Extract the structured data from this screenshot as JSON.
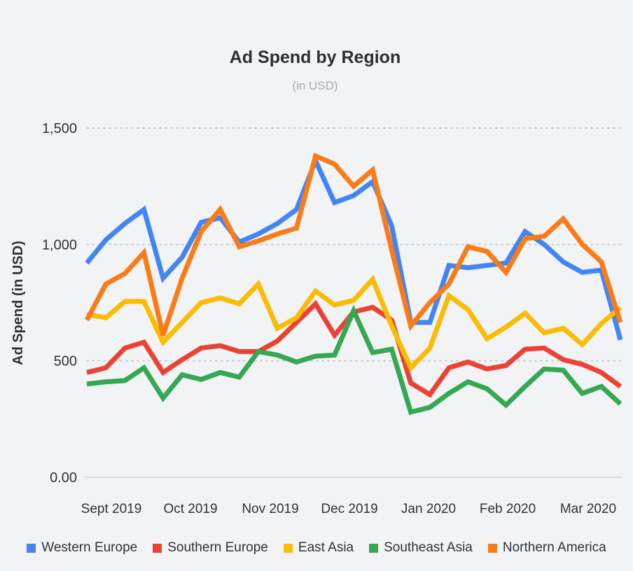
{
  "chart_data": {
    "type": "line",
    "title": "Ad Spend by Region",
    "subtitle": "(in USD)",
    "ylabel": "Ad Spend (in USD)",
    "xlabel": "",
    "ylim": [
      0,
      1500
    ],
    "yticks": [
      0,
      500,
      1000,
      1500
    ],
    "ytick_labels": [
      "0.00",
      "500",
      "1,000",
      "1,500"
    ],
    "x_tick_labels": [
      "Sept 2019",
      "Oct 2019",
      "Nov 2019",
      "Dec 2019",
      "Jan 2020",
      "Feb 2020",
      "Mar 2020"
    ],
    "grid": true,
    "legend_position": "bottom",
    "series": [
      {
        "name": "Western Europe",
        "color": "#4285f4",
        "values": [
          920,
          1020,
          1090,
          1150,
          855,
          945,
          1095,
          1115,
          1010,
          1045,
          1090,
          1150,
          1360,
          1180,
          1210,
          1270,
          1080,
          665,
          665,
          910,
          900,
          910,
          920,
          1055,
          1000,
          925,
          880,
          890,
          590
        ]
      },
      {
        "name": "Southern Europe",
        "color": "#ea4335",
        "values": [
          450,
          470,
          555,
          580,
          450,
          505,
          555,
          565,
          540,
          540,
          585,
          665,
          745,
          610,
          710,
          730,
          675,
          405,
          355,
          470,
          495,
          465,
          480,
          550,
          555,
          505,
          485,
          450,
          390
        ]
      },
      {
        "name": "East Asia",
        "color": "#fbbc04",
        "values": [
          700,
          685,
          755,
          755,
          580,
          665,
          750,
          770,
          745,
          830,
          640,
          685,
          800,
          740,
          760,
          850,
          650,
          470,
          555,
          780,
          720,
          595,
          645,
          705,
          620,
          640,
          570,
          660,
          730
        ]
      },
      {
        "name": "Southeast Asia",
        "color": "#34a853",
        "values": [
          400,
          410,
          415,
          470,
          340,
          440,
          420,
          450,
          430,
          540,
          525,
          495,
          520,
          525,
          715,
          535,
          550,
          280,
          300,
          360,
          410,
          380,
          310,
          390,
          465,
          460,
          360,
          390,
          315
        ]
      },
      {
        "name": "Northern America",
        "color": "#fa7b17",
        "values": [
          675,
          830,
          875,
          965,
          610,
          855,
          1055,
          1150,
          990,
          1015,
          1045,
          1070,
          1380,
          1345,
          1250,
          1320,
          975,
          650,
          750,
          830,
          990,
          970,
          880,
          1025,
          1035,
          1110,
          1000,
          925,
          665
        ]
      }
    ]
  }
}
